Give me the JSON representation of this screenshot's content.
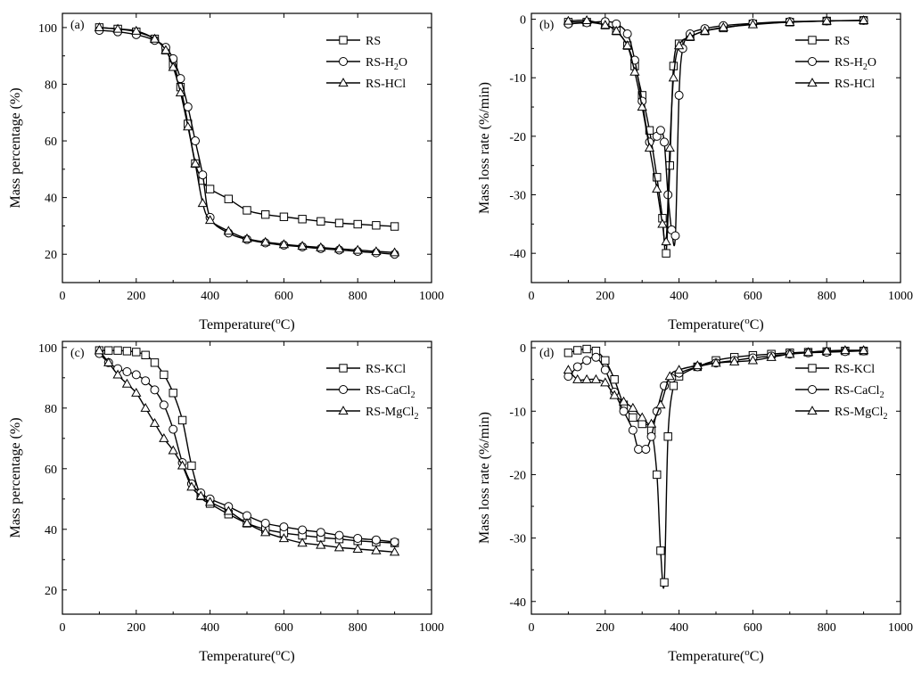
{
  "figure": {
    "xlabel_prefix": "Temperature(",
    "xlabel_sup": "o",
    "xlabel_suffix": "C)"
  },
  "chart_data": [
    {
      "type": "line",
      "panel": "(a)",
      "title": "",
      "xlabel": "Temperature(oC)",
      "ylabel": "Mass percentage (%)",
      "xlim": [
        0,
        1000
      ],
      "ylim": [
        10,
        105
      ],
      "xticks": [
        0,
        200,
        400,
        600,
        800,
        1000
      ],
      "yticks": [
        20,
        40,
        60,
        80,
        100
      ],
      "legend_position": "top-right",
      "series": [
        {
          "name": "RS",
          "marker": "square",
          "x": [
            100,
            150,
            200,
            250,
            280,
            300,
            320,
            340,
            360,
            380,
            400,
            450,
            500,
            550,
            600,
            650,
            700,
            750,
            800,
            850,
            900
          ],
          "y": [
            100,
            99.5,
            98.5,
            96,
            92,
            87,
            79,
            66,
            52,
            46,
            43,
            39.5,
            35.5,
            34,
            33.2,
            32.4,
            31.6,
            31,
            30.6,
            30.2,
            29.8
          ]
        },
        {
          "name": "RS-H2O",
          "name_main": "RS-H",
          "name_sub": "2",
          "name_tail": "O",
          "marker": "circle",
          "x": [
            100,
            150,
            200,
            250,
            280,
            300,
            320,
            340,
            360,
            380,
            400,
            450,
            500,
            550,
            600,
            650,
            700,
            750,
            800,
            850,
            900
          ],
          "y": [
            99,
            98.5,
            97.5,
            95.5,
            93,
            89,
            82,
            72,
            60,
            48,
            33,
            27.5,
            25.2,
            24,
            23.2,
            22.6,
            22,
            21.5,
            21,
            20.5,
            20
          ]
        },
        {
          "name": "RS-HCl",
          "marker": "triangle",
          "x": [
            100,
            150,
            200,
            250,
            280,
            300,
            320,
            340,
            360,
            380,
            400,
            450,
            500,
            550,
            600,
            650,
            700,
            750,
            800,
            850,
            900
          ],
          "y": [
            100,
            99.5,
            98.8,
            96,
            92,
            86,
            77,
            65,
            52,
            38,
            32,
            28.2,
            25.5,
            24.3,
            23.5,
            22.9,
            22.4,
            21.9,
            21.5,
            21,
            20.6
          ]
        }
      ]
    },
    {
      "type": "line",
      "panel": "(b)",
      "title": "",
      "xlabel": "Temperature(oC)",
      "ylabel": "Mass loss rate (%/min)",
      "xlim": [
        0,
        1000
      ],
      "ylim": [
        -45,
        1
      ],
      "xticks": [
        0,
        200,
        400,
        600,
        800,
        1000
      ],
      "yticks": [
        0,
        -10,
        -20,
        -30,
        -40
      ],
      "legend_position": "top-right",
      "series": [
        {
          "name": "RS",
          "marker": "square",
          "x": [
            100,
            150,
            200,
            230,
            260,
            280,
            300,
            320,
            340,
            355,
            365,
            375,
            385,
            400,
            430,
            470,
            520,
            600,
            700,
            800,
            900
          ],
          "y": [
            -0.5,
            -0.5,
            -1,
            -2,
            -4.5,
            -8,
            -13,
            -19,
            -27,
            -34,
            -40,
            -25,
            -8,
            -4.2,
            -3,
            -2,
            -1.5,
            -0.8,
            -0.5,
            -0.3,
            -0.2
          ]
        },
        {
          "name": "RS-H2O",
          "name_main": "RS-H",
          "name_sub": "2",
          "name_tail": "O",
          "marker": "circle",
          "x": [
            100,
            150,
            200,
            230,
            260,
            280,
            300,
            320,
            340,
            350,
            360,
            370,
            380,
            390,
            400,
            410,
            430,
            470,
            520,
            600,
            700,
            800,
            900
          ],
          "y": [
            -0.8,
            -0.6,
            -0.4,
            -0.8,
            -2.5,
            -7,
            -14,
            -21,
            -20,
            -19,
            -21,
            -30,
            -36,
            -37,
            -13,
            -5,
            -2.5,
            -1.6,
            -1.1,
            -0.7,
            -0.4,
            -0.3,
            -0.2
          ]
        },
        {
          "name": "RS-HCl",
          "marker": "triangle",
          "x": [
            100,
            150,
            200,
            230,
            260,
            280,
            300,
            320,
            340,
            355,
            365,
            375,
            385,
            400,
            430,
            470,
            520,
            600,
            700,
            800,
            900
          ],
          "y": [
            -0.3,
            -0.2,
            -1,
            -2,
            -4.5,
            -9,
            -15,
            -22,
            -29,
            -35,
            -38,
            -22,
            -10,
            -4.5,
            -3,
            -2,
            -1.4,
            -0.9,
            -0.5,
            -0.3,
            -0.2
          ]
        }
      ]
    },
    {
      "type": "line",
      "panel": "(c)",
      "title": "",
      "xlabel": "Temperature(oC)",
      "ylabel": "Mass percentage (%)",
      "xlim": [
        0,
        1000
      ],
      "ylim": [
        12,
        102
      ],
      "xticks": [
        0,
        200,
        400,
        600,
        800,
        1000
      ],
      "yticks": [
        20,
        40,
        60,
        80,
        100
      ],
      "legend_position": "top-right",
      "series": [
        {
          "name": "RS-KCl",
          "name_main": "RS-KCl",
          "name_sub": "",
          "name_tail": "",
          "marker": "square",
          "x": [
            100,
            125,
            150,
            175,
            200,
            225,
            250,
            275,
            300,
            325,
            350,
            375,
            400,
            450,
            500,
            550,
            600,
            650,
            700,
            750,
            800,
            850,
            900
          ],
          "y": [
            99,
            99,
            99,
            98.8,
            98.5,
            97.5,
            95,
            91,
            85,
            76,
            61,
            51,
            48.5,
            45,
            42,
            40,
            38.8,
            38,
            37.3,
            36.8,
            36.2,
            35.8,
            35.5
          ]
        },
        {
          "name": "RS-CaCl2",
          "name_main": "RS-CaCl",
          "name_sub": "2",
          "name_tail": "",
          "marker": "circle",
          "x": [
            100,
            125,
            150,
            175,
            200,
            225,
            250,
            275,
            300,
            325,
            350,
            375,
            400,
            450,
            500,
            550,
            600,
            650,
            700,
            750,
            800,
            850,
            900
          ],
          "y": [
            98,
            95,
            93,
            92,
            91,
            89,
            86,
            81,
            73,
            62,
            55,
            52,
            50,
            47.5,
            44.5,
            42,
            40.8,
            39.8,
            39,
            38,
            37,
            36.5,
            35.8
          ]
        },
        {
          "name": "RS-MgCl2",
          "name_main": "RS-MgCl",
          "name_sub": "2",
          "name_tail": "",
          "marker": "triangle",
          "x": [
            100,
            125,
            150,
            175,
            200,
            225,
            250,
            275,
            300,
            325,
            350,
            375,
            400,
            450,
            500,
            550,
            600,
            650,
            700,
            750,
            800,
            850,
            900
          ],
          "y": [
            99,
            95,
            91,
            88,
            85,
            80,
            75,
            70,
            66,
            61,
            54,
            51,
            49,
            46,
            42,
            39,
            37,
            35.5,
            34.8,
            34,
            33.5,
            33,
            32.5
          ]
        }
      ]
    },
    {
      "type": "line",
      "panel": "(d)",
      "title": "",
      "xlabel": "Temperature(oC)",
      "ylabel": "Mass loss rate (%/min)",
      "xlim": [
        0,
        1000
      ],
      "ylim": [
        -42,
        1
      ],
      "xticks": [
        0,
        200,
        400,
        600,
        800,
        1000
      ],
      "yticks": [
        0,
        -10,
        -20,
        -30,
        -40
      ],
      "legend_position": "top-right",
      "series": [
        {
          "name": "RS-KCl",
          "name_main": "RS-KCl",
          "name_sub": "",
          "name_tail": "",
          "marker": "square",
          "x": [
            100,
            125,
            150,
            175,
            200,
            225,
            250,
            275,
            300,
            325,
            340,
            350,
            360,
            370,
            385,
            400,
            450,
            500,
            550,
            600,
            650,
            700,
            750,
            800,
            850,
            900
          ],
          "y": [
            -0.8,
            -0.4,
            -0.2,
            -0.5,
            -2,
            -5,
            -9,
            -11,
            -12,
            -13,
            -20,
            -32,
            -37,
            -14,
            -6,
            -4.5,
            -3,
            -2,
            -1.5,
            -1.2,
            -1,
            -0.8,
            -0.7,
            -0.6,
            -0.5,
            -0.5
          ]
        },
        {
          "name": "RS-CaCl2",
          "name_main": "RS-CaCl",
          "name_sub": "2",
          "name_tail": "",
          "marker": "circle",
          "x": [
            100,
            125,
            150,
            175,
            200,
            225,
            250,
            275,
            290,
            310,
            325,
            340,
            360,
            380,
            400,
            450,
            500,
            550,
            600,
            650,
            700,
            750,
            800,
            850,
            900
          ],
          "y": [
            -4.5,
            -3,
            -2,
            -1.5,
            -3.5,
            -7,
            -10,
            -13,
            -16,
            -16,
            -14,
            -10,
            -6,
            -4.8,
            -4,
            -3,
            -2.4,
            -2,
            -1.6,
            -1.3,
            -1,
            -0.8,
            -0.7,
            -0.6,
            -0.5
          ]
        },
        {
          "name": "RS-MgCl2",
          "name_main": "RS-MgCl",
          "name_sub": "2",
          "name_tail": "",
          "marker": "triangle",
          "x": [
            100,
            125,
            150,
            175,
            200,
            225,
            250,
            275,
            300,
            325,
            350,
            375,
            400,
            450,
            500,
            550,
            600,
            650,
            700,
            750,
            800,
            850,
            900
          ],
          "y": [
            -3.5,
            -5,
            -5,
            -5,
            -5.5,
            -7.5,
            -8.5,
            -9.5,
            -11,
            -12,
            -9,
            -4.5,
            -3.5,
            -2.8,
            -2.4,
            -2.2,
            -2,
            -1.5,
            -1,
            -0.7,
            -0.5,
            -0.4,
            -0.4
          ]
        }
      ]
    }
  ]
}
